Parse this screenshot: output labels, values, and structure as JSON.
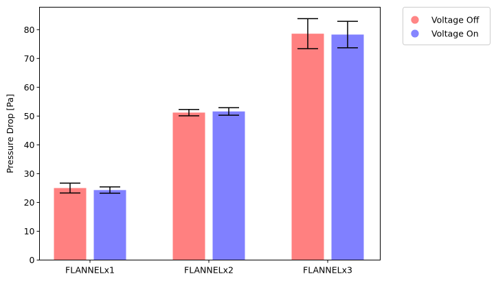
{
  "chart_data": {
    "type": "bar",
    "categories": [
      "FLANNELx1",
      "FLANNELx2",
      "FLANNELx3"
    ],
    "series": [
      {
        "name": "Voltage Off",
        "color": "#ff8080",
        "values": [
          25.0,
          51.2,
          78.6
        ],
        "errors": [
          1.7,
          1.1,
          5.2
        ]
      },
      {
        "name": "Voltage On",
        "color": "#8080ff",
        "values": [
          24.3,
          51.6,
          78.3
        ],
        "errors": [
          1.1,
          1.3,
          4.6
        ]
      }
    ],
    "xlabel": "",
    "ylabel": "Pressure Drop [Pa]",
    "ylim": [
      0,
      87.8
    ],
    "yticks": [
      0,
      10,
      20,
      30,
      40,
      50,
      60,
      70,
      80
    ],
    "grid": false,
    "legend_position": "outside-top-right",
    "error_bar_color": "#000000"
  }
}
